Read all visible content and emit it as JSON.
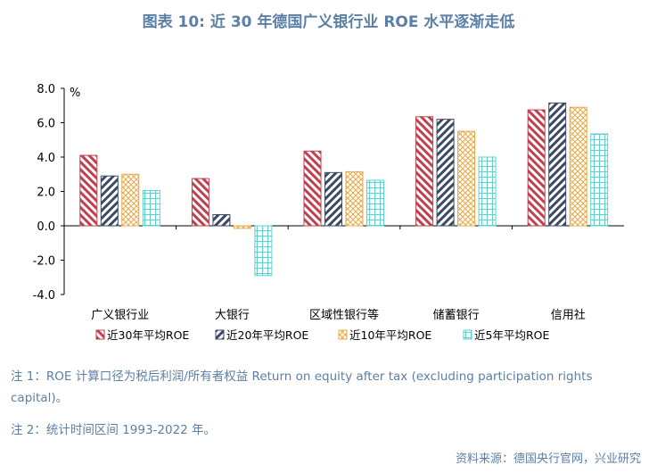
{
  "title": "图表 10: 近 30 年德国广义银行业 ROE 水平逐渐走低",
  "chart_data": {
    "type": "bar",
    "unit": "%",
    "categories": [
      "广义银行业",
      "大银行",
      "区域性银行等",
      "储蓄银行",
      "信用社"
    ],
    "series": [
      {
        "name": "近30年平均ROE",
        "color": "#c0404f",
        "values": [
          4.1,
          2.75,
          4.35,
          6.35,
          6.75
        ]
      },
      {
        "name": "近20年平均ROE",
        "color": "#3d4a64",
        "values": [
          2.9,
          0.65,
          3.1,
          6.2,
          7.15
        ]
      },
      {
        "name": "近10年平均ROE",
        "color": "#e8a845",
        "values": [
          3.0,
          -0.15,
          3.15,
          5.5,
          6.9
        ]
      },
      {
        "name": "近5年平均ROE",
        "color": "#5ed0d0",
        "values": [
          2.05,
          -2.9,
          2.65,
          4.0,
          5.35
        ]
      }
    ],
    "ylim": [
      -4,
      8
    ],
    "yticks": [
      "8.0",
      "6.0",
      "4.0",
      "2.0",
      "0.0",
      "-2.0",
      "-4.0"
    ],
    "legend": "bottom"
  },
  "notes": [
    "注 1：ROE 计算口径为税后利润/所有者权益 Return on equity after tax (excluding participation rights capital)。",
    "注 2：统计时间区间 1993-2022 年。"
  ],
  "source": "资料来源：德国央行官网，兴业研究"
}
